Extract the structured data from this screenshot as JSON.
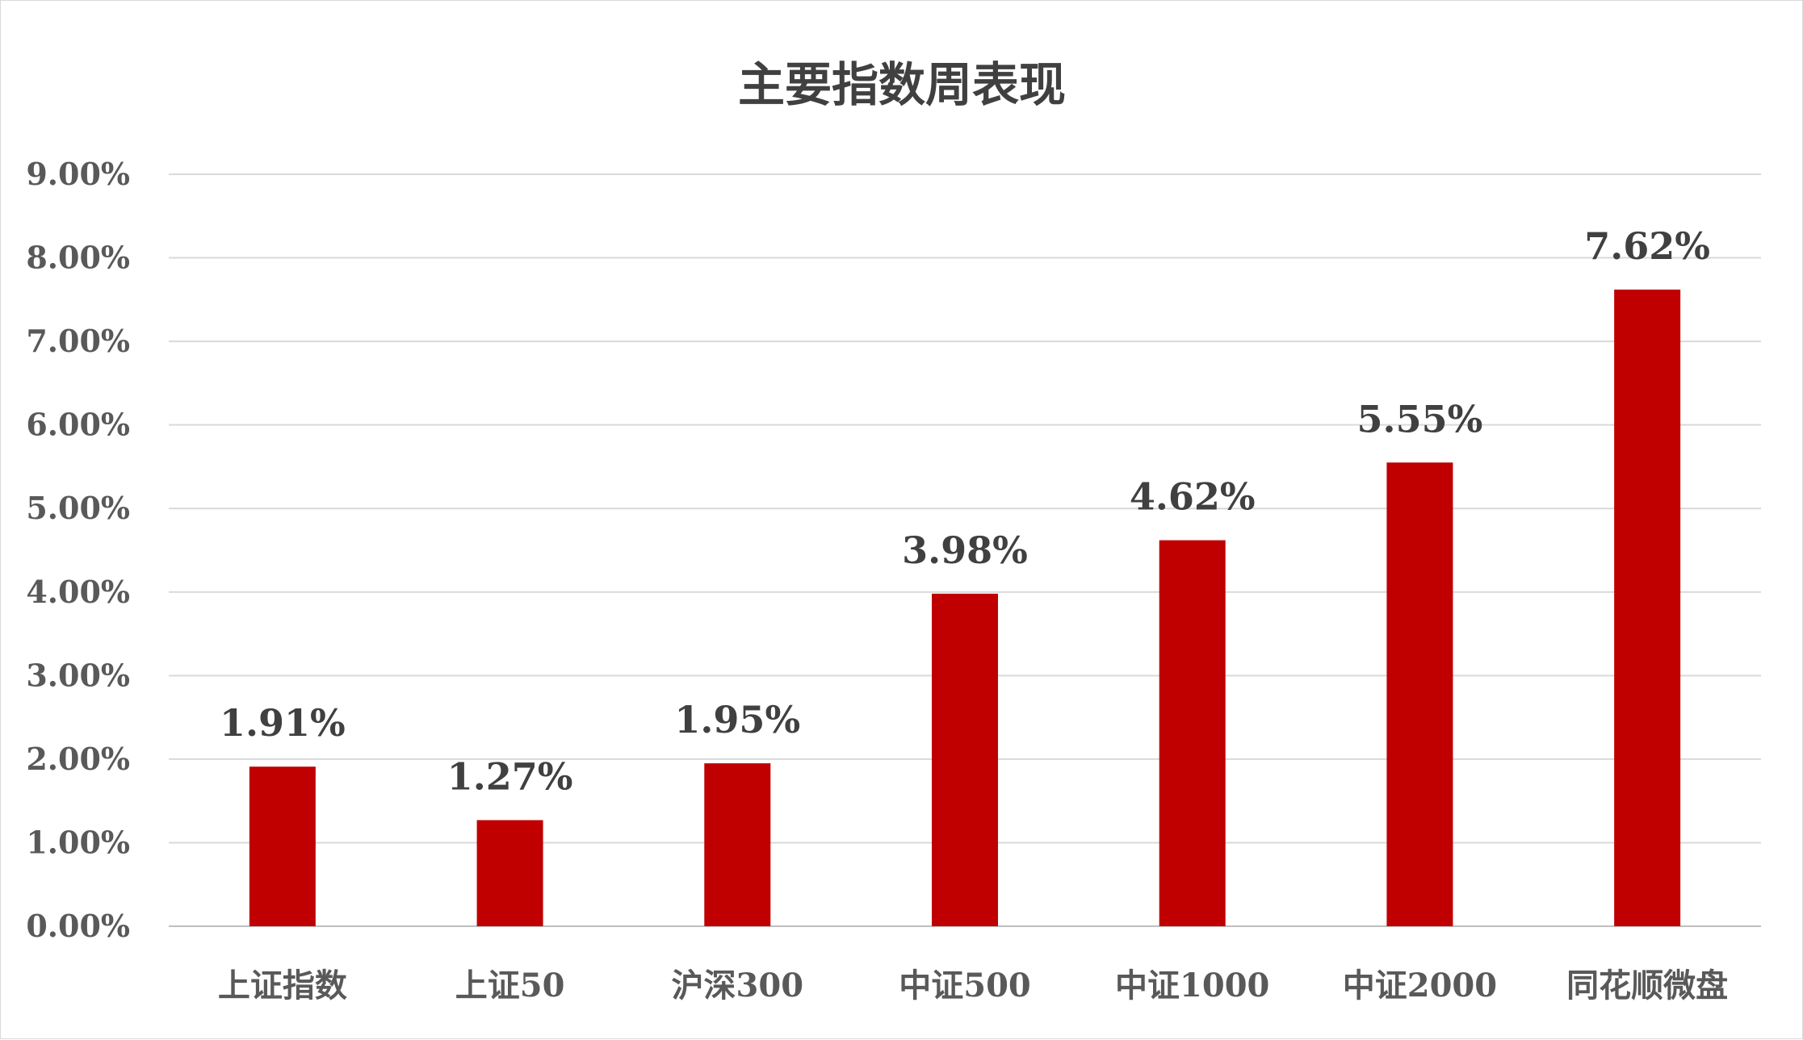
{
  "chart_data": {
    "type": "bar",
    "title": "主要指数周表现",
    "xlabel": "",
    "ylabel": "",
    "categories": [
      "上证指数",
      "上证50",
      "沪深300",
      "中证500",
      "中证1000",
      "中证2000",
      "同花顺微盘"
    ],
    "values": [
      1.91,
      1.27,
      1.95,
      3.98,
      4.62,
      5.55,
      7.62
    ],
    "data_labels": [
      "1.91%",
      "1.27%",
      "1.95%",
      "3.98%",
      "4.62%",
      "5.55%",
      "7.62%"
    ],
    "ylim": [
      0,
      9
    ],
    "yticks": [
      0,
      1,
      2,
      3,
      4,
      5,
      6,
      7,
      8,
      9
    ],
    "ytick_labels": [
      "0.00%",
      "1.00%",
      "2.00%",
      "3.00%",
      "4.00%",
      "5.00%",
      "6.00%",
      "7.00%",
      "8.00%",
      "9.00%"
    ],
    "grid": true,
    "legend": "none",
    "bar_color": "#C00000"
  }
}
